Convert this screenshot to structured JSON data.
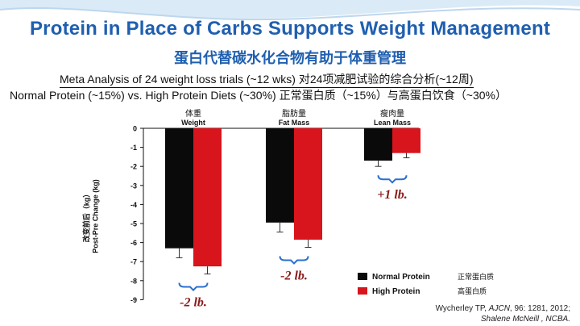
{
  "title_en": "Protein in Place of Carbs Supports Weight Management",
  "title_cn": "蛋白代替碳水化合物有助于体重管理",
  "subtitle": "Meta Analysis of 24 weight loss trials (~12 wks)  对24项减肥试验的综合分析(~12周)",
  "comparison": "Normal Protein (~15%) vs. High Protein Diets (~30%)  正常蛋白质（~15%）与高蛋白饮食（~30%）",
  "y_axis_label_cn": "改变前后（kg）",
  "y_axis_label_en": "Post-Pre Change (kg)",
  "citation": {
    "line1_prefix": "Wycherley TP, ",
    "line1_journal": "AJCN",
    "line1_suffix": ", 96: 1281, 2012;",
    "line2": "Shalene McNeill , NCBA."
  },
  "colors": {
    "title": "#1f5fb0",
    "normal": "#0a0a0a",
    "high": "#d8141c",
    "bracket": "#2a6fd0",
    "annotation": "#8b1a1a"
  },
  "chart_data": {
    "type": "bar",
    "categories": [
      {
        "cn": "体重",
        "en": "Weight"
      },
      {
        "cn": "脂肪量",
        "en": "Fat Mass"
      },
      {
        "cn": "瘦肉量",
        "en": "Lean Mass"
      }
    ],
    "series": [
      {
        "name": "Normal Protein",
        "name_cn": "正常蛋白质",
        "values": [
          -6.3,
          -4.95,
          -1.7
        ],
        "errors": [
          0.5,
          0.5,
          0.3
        ]
      },
      {
        "name": "High Protein",
        "name_cn": "高蛋白质",
        "values": [
          -7.25,
          -5.85,
          -1.3
        ],
        "errors": [
          0.4,
          0.4,
          0.25
        ]
      }
    ],
    "annotations": [
      "-2 lb.",
      "-2 lb.",
      "+1 lb."
    ],
    "ylim": [
      -9,
      0
    ],
    "yticks": [
      "0",
      "-1",
      "-2",
      "-3",
      "-4",
      "-5",
      "-6",
      "-7",
      "-8",
      "-9"
    ],
    "legend_position": "bottom-right"
  }
}
